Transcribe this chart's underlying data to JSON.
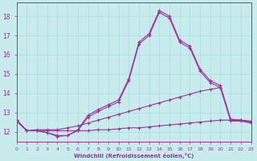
{
  "xlabel": "Windchill (Refroidissement éolien,°C)",
  "bg_color": "#c8ecec",
  "grid_color": "#aadddd",
  "line_color": "#993399",
  "xlim": [
    0,
    23
  ],
  "ylim": [
    11.5,
    18.7
  ],
  "yticks": [
    12,
    13,
    14,
    15,
    16,
    17,
    18
  ],
  "xticks": [
    0,
    1,
    2,
    3,
    4,
    5,
    6,
    7,
    8,
    9,
    10,
    11,
    12,
    13,
    14,
    15,
    16,
    17,
    18,
    19,
    20,
    21,
    22,
    23
  ],
  "line1_x": [
    0,
    1,
    2,
    3,
    4,
    5,
    6,
    7,
    8,
    9,
    10,
    11,
    12,
    13,
    14,
    15,
    16,
    17,
    18,
    19,
    20,
    21,
    22,
    23
  ],
  "line1_y": [
    12.6,
    12.05,
    12.05,
    11.95,
    11.75,
    11.8,
    12.05,
    12.75,
    13.05,
    13.3,
    13.55,
    14.65,
    16.55,
    17.0,
    18.2,
    17.9,
    16.65,
    16.35,
    15.15,
    14.55,
    14.3,
    12.55,
    12.55,
    12.45
  ],
  "line2_x": [
    0,
    1,
    2,
    3,
    4,
    5,
    6,
    7,
    8,
    9,
    10,
    11,
    12,
    13,
    14,
    15,
    16,
    17,
    18,
    19,
    20,
    21,
    22,
    23
  ],
  "line2_y": [
    12.6,
    12.05,
    12.05,
    11.95,
    11.8,
    11.8,
    12.1,
    12.85,
    13.15,
    13.4,
    13.65,
    14.75,
    16.65,
    17.1,
    18.3,
    18.0,
    16.75,
    16.45,
    15.25,
    14.65,
    14.4,
    12.65,
    12.6,
    12.5
  ],
  "line3_x": [
    0,
    1,
    2,
    3,
    4,
    5,
    6,
    7,
    8,
    9,
    10,
    11,
    12,
    13,
    14,
    15,
    16,
    17,
    18,
    19,
    20,
    21,
    22,
    23
  ],
  "line3_y": [
    12.55,
    12.05,
    12.1,
    12.1,
    12.1,
    12.2,
    12.3,
    12.45,
    12.6,
    12.75,
    12.9,
    13.05,
    13.2,
    13.35,
    13.5,
    13.65,
    13.8,
    13.95,
    14.1,
    14.2,
    14.3,
    12.6,
    12.6,
    12.5
  ],
  "line4_x": [
    0,
    1,
    2,
    3,
    4,
    5,
    6,
    7,
    8,
    9,
    10,
    11,
    12,
    13,
    14,
    15,
    16,
    17,
    18,
    19,
    20,
    21,
    22,
    23
  ],
  "line4_y": [
    12.55,
    12.05,
    12.05,
    12.05,
    12.05,
    12.05,
    12.05,
    12.05,
    12.1,
    12.1,
    12.15,
    12.2,
    12.2,
    12.25,
    12.3,
    12.35,
    12.4,
    12.45,
    12.5,
    12.55,
    12.6,
    12.6,
    12.6,
    12.55
  ]
}
